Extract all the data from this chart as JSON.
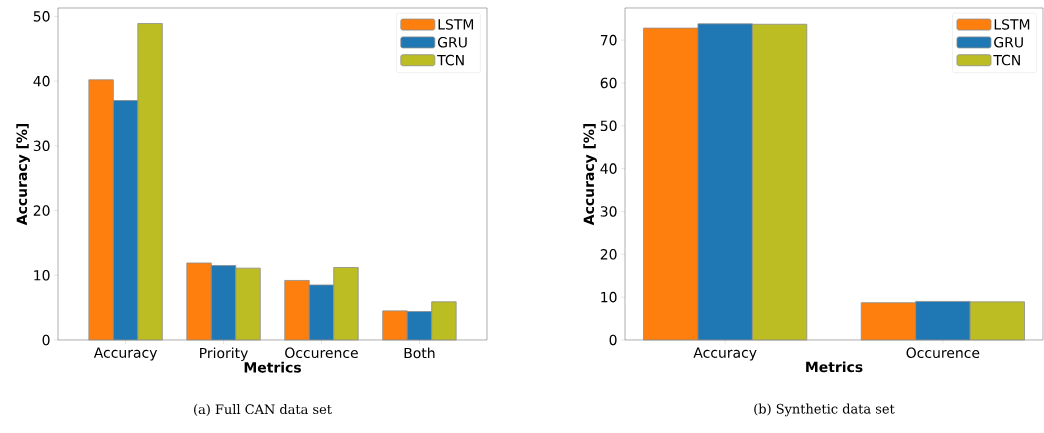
{
  "chart_data": [
    {
      "type": "bar",
      "xlabel": "Metrics",
      "ylabel": "Accuracy [%]",
      "categories": [
        "Accuracy",
        "Priority",
        "Occurence",
        "Both"
      ],
      "series": [
        {
          "name": "LSTM",
          "color": "#ff7f0e",
          "values": [
            40.2,
            11.9,
            9.2,
            4.5
          ]
        },
        {
          "name": "GRU",
          "color": "#1f77b4",
          "values": [
            37.0,
            11.5,
            8.5,
            4.4
          ]
        },
        {
          "name": "TCN",
          "color": "#bcbd22",
          "values": [
            48.9,
            11.1,
            11.2,
            5.9
          ]
        }
      ],
      "ylim": [
        0,
        51.3
      ],
      "yticks": [
        0,
        10,
        20,
        30,
        40,
        50
      ],
      "legend": "top right",
      "grid": false,
      "annotations": [
        "(a) Full CAN data set"
      ]
    },
    {
      "type": "bar",
      "xlabel": "Metrics",
      "ylabel": "Accuracy [%]",
      "categories": [
        "Accuracy",
        "Occurence"
      ],
      "series": [
        {
          "name": "LSTM",
          "color": "#ff7f0e",
          "values": [
            72.8,
            8.7
          ]
        },
        {
          "name": "GRU",
          "color": "#1f77b4",
          "values": [
            73.8,
            9.0
          ]
        },
        {
          "name": "TCN",
          "color": "#bcbd22",
          "values": [
            73.7,
            8.9
          ]
        }
      ],
      "ylim": [
        0,
        77.5
      ],
      "yticks": [
        0,
        10,
        20,
        30,
        40,
        50,
        60,
        70
      ],
      "legend": "top right",
      "grid": false,
      "annotations": [
        "(b) Synthetic data set"
      ]
    }
  ]
}
